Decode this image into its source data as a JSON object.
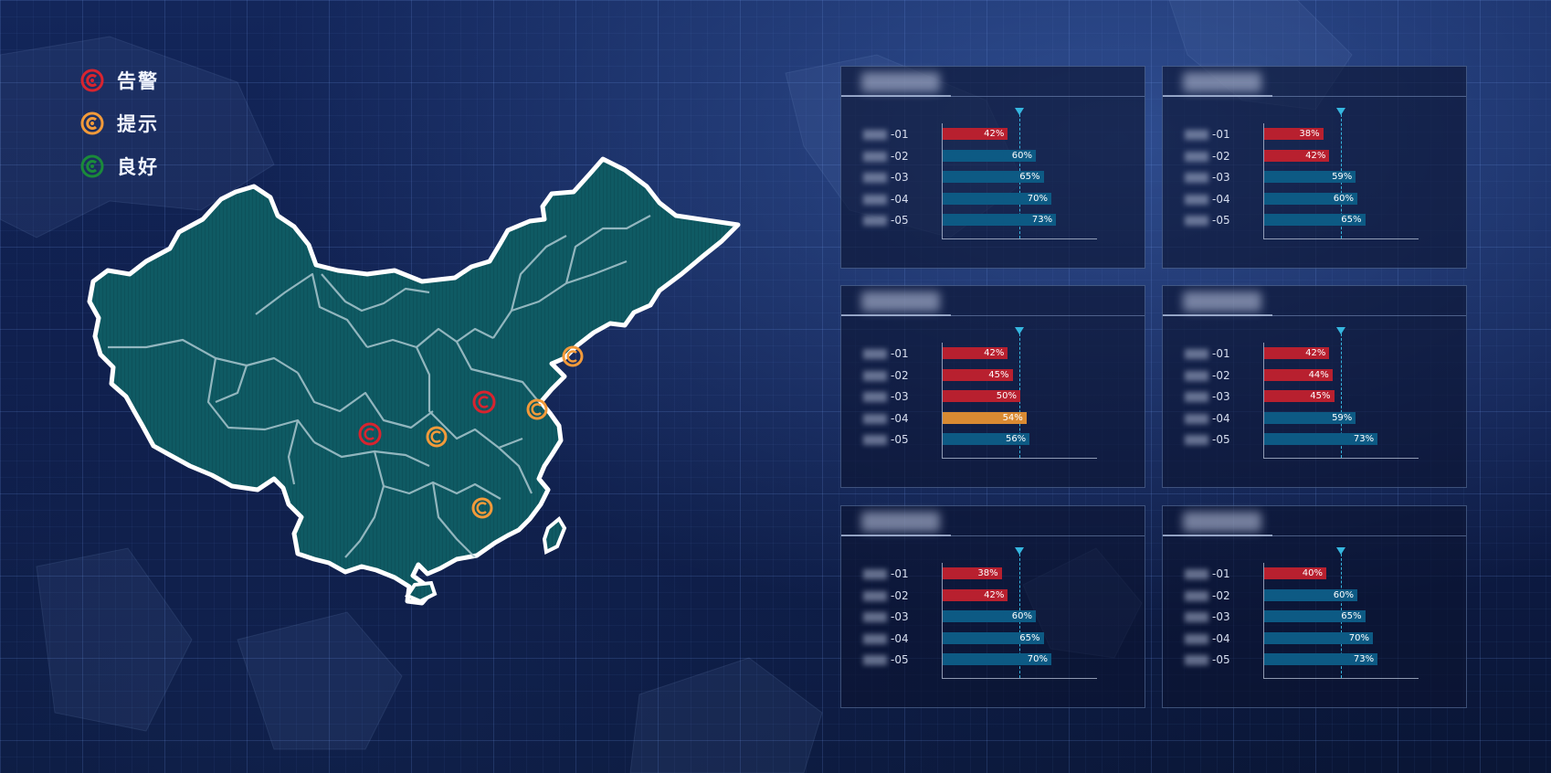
{
  "legend": {
    "items": [
      {
        "label": "告警",
        "color": "#d8242f",
        "icon": "alarm-ring-icon"
      },
      {
        "label": "提示",
        "color": "#f29a3a",
        "icon": "notice-ring-icon"
      },
      {
        "label": "良好",
        "color": "#1a8a3a",
        "icon": "good-ring-icon"
      }
    ]
  },
  "colors": {
    "alarm": "#b8202f",
    "notice": "#d98a32",
    "good": "#0d5a84",
    "map_fill": "#0f5a63",
    "target": "#36b7e0"
  },
  "map": {
    "markers": [
      {
        "status": "alarm",
        "icon": "alarm-marker-icon"
      },
      {
        "status": "alarm",
        "icon": "alarm-marker-icon"
      },
      {
        "status": "notice",
        "icon": "notice-marker-icon"
      },
      {
        "status": "notice",
        "icon": "notice-marker-icon"
      },
      {
        "status": "notice",
        "icon": "notice-marker-icon"
      },
      {
        "status": "notice",
        "icon": "notice-marker-icon"
      }
    ]
  },
  "chart_data": [
    {
      "type": "bar",
      "title_blurred": true,
      "categories": [
        "-01",
        "-02",
        "-03",
        "-04",
        "-05"
      ],
      "target": 50,
      "xlim": [
        0,
        100
      ],
      "values": [
        42,
        60,
        65,
        70,
        73
      ],
      "labels": [
        "42%",
        "60%",
        "65%",
        "70%",
        "73%"
      ],
      "status": [
        "alarm",
        "good",
        "good",
        "good",
        "good"
      ]
    },
    {
      "type": "bar",
      "title_blurred": true,
      "categories": [
        "-01",
        "-02",
        "-03",
        "-04",
        "-05"
      ],
      "target": 50,
      "xlim": [
        0,
        100
      ],
      "values": [
        38,
        42,
        59,
        60,
        65
      ],
      "labels": [
        "38%",
        "42%",
        "59%",
        "60%",
        "65%"
      ],
      "status": [
        "alarm",
        "alarm",
        "good",
        "good",
        "good"
      ]
    },
    {
      "type": "bar",
      "title_blurred": true,
      "categories": [
        "-01",
        "-02",
        "-03",
        "-04",
        "-05"
      ],
      "target": 50,
      "xlim": [
        0,
        100
      ],
      "values": [
        42,
        45,
        50,
        54,
        56
      ],
      "labels": [
        "42%",
        "45%",
        "50%",
        "54%",
        "56%"
      ],
      "status": [
        "alarm",
        "alarm",
        "alarm",
        "notice",
        "good"
      ]
    },
    {
      "type": "bar",
      "title_blurred": true,
      "categories": [
        "-01",
        "-02",
        "-03",
        "-04",
        "-05"
      ],
      "target": 50,
      "xlim": [
        0,
        100
      ],
      "values": [
        42,
        44,
        45,
        59,
        73
      ],
      "labels": [
        "42%",
        "44%",
        "45%",
        "59%",
        "73%"
      ],
      "status": [
        "alarm",
        "alarm",
        "alarm",
        "good",
        "good"
      ]
    },
    {
      "type": "bar",
      "title_blurred": true,
      "categories": [
        "-01",
        "-02",
        "-03",
        "-04",
        "-05"
      ],
      "target": 50,
      "xlim": [
        0,
        100
      ],
      "values": [
        38,
        42,
        60,
        65,
        70
      ],
      "labels": [
        "38%",
        "42%",
        "60%",
        "65%",
        "70%"
      ],
      "status": [
        "alarm",
        "alarm",
        "good",
        "good",
        "good"
      ]
    },
    {
      "type": "bar",
      "title_blurred": true,
      "categories": [
        "-01",
        "-02",
        "-03",
        "-04",
        "-05"
      ],
      "target": 50,
      "xlim": [
        0,
        100
      ],
      "values": [
        40,
        60,
        65,
        70,
        73
      ],
      "labels": [
        "40%",
        "60%",
        "65%",
        "70%",
        "73%"
      ],
      "status": [
        "alarm",
        "good",
        "good",
        "good",
        "good"
      ]
    }
  ]
}
